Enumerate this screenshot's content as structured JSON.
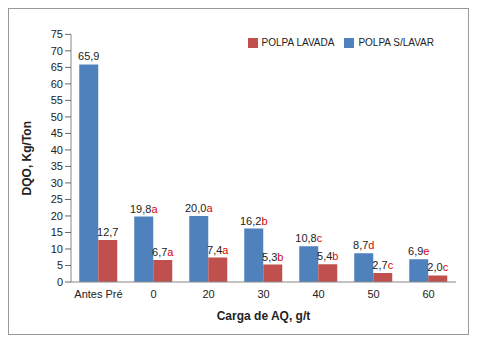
{
  "chart_data": {
    "type": "bar",
    "x_label": "Carga de AQ, g/t",
    "y_label": "DQO, Kg/Ton",
    "categories": [
      "Antes Pré",
      "0",
      "20",
      "30",
      "40",
      "50",
      "60"
    ],
    "series": [
      {
        "name": "POLPA S/LAVAR",
        "color": "#4f81bd",
        "values": [
          65.9,
          19.8,
          20.0,
          16.2,
          10.8,
          8.7,
          6.9
        ],
        "value_labels": [
          "65,9",
          "19,8",
          "20,0",
          "16,2",
          "10,8",
          "8,7",
          "6,9"
        ],
        "letters": [
          null,
          "a",
          "a",
          "b",
          "c",
          "d",
          "e"
        ]
      },
      {
        "name": "POLPA LAVADA",
        "color": "#c0504d",
        "values": [
          12.7,
          6.7,
          7.4,
          5.3,
          5.4,
          2.7,
          2.0
        ],
        "value_labels": [
          "12,7",
          "6,7",
          "7,4",
          "5,3",
          "5,4",
          "2,7",
          "2,0"
        ],
        "letters": [
          null,
          "a",
          "a",
          "b",
          "b",
          "c",
          "c"
        ]
      }
    ],
    "ylim": [
      0,
      75
    ],
    "yticks": [
      0,
      5,
      10,
      15,
      20,
      25,
      30,
      35,
      40,
      45,
      50,
      55,
      60,
      65,
      70,
      75
    ],
    "grid": false,
    "legend": "top-right",
    "data_labels": true
  }
}
